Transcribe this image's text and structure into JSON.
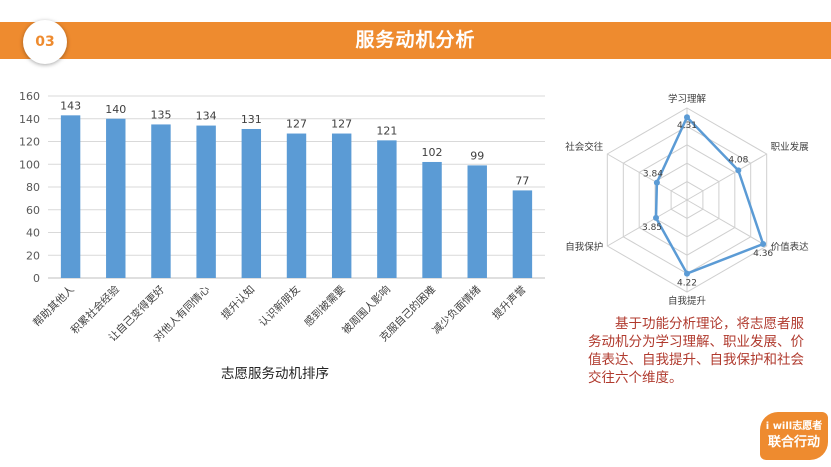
{
  "header": {
    "section_number": "03",
    "title": "服务动机分析"
  },
  "bar_caption": "志愿服务动机排序",
  "radar_note": "基于功能分析理论，将志愿者服务动机分为学习理解、职业发展、价值表达、自我提升、自我保护和社会交往六个维度。",
  "logo": {
    "line1": "i will志愿者",
    "line2": "联合行动"
  },
  "colors": {
    "accent": "#ee8b2f",
    "bar": "#5b9bd5",
    "note_text": "#b03a2e"
  },
  "chart_data": [
    {
      "type": "bar",
      "title": "",
      "xlabel": "",
      "ylabel": "",
      "categories": [
        "帮助其他人",
        "积累社会经验",
        "让自己变得更好",
        "对他人有同情心",
        "提升认知",
        "认识新朋友",
        "感到被需要",
        "被周围人影响",
        "克服自己的困难",
        "减少负面情绪",
        "提升声誉"
      ],
      "values": [
        143,
        140,
        135,
        134,
        131,
        127,
        127,
        121,
        102,
        99,
        77
      ],
      "ylim": [
        0,
        160
      ],
      "yticks": [
        0,
        20,
        40,
        60,
        80,
        100,
        120,
        140,
        160
      ],
      "grid": true,
      "legend": "none"
    },
    {
      "type": "radar",
      "categories": [
        "学习理解",
        "职业发展",
        "价值表达",
        "自我提升",
        "自我保护",
        "社会交往"
      ],
      "values": [
        4.31,
        4.08,
        4.36,
        4.22,
        3.85,
        3.84
      ],
      "value_labels": [
        "4.31",
        "4.08",
        "4.36",
        "4.22",
        "3.85",
        "3.84"
      ],
      "range": [
        3.5,
        4.4
      ],
      "legend": "none"
    }
  ]
}
